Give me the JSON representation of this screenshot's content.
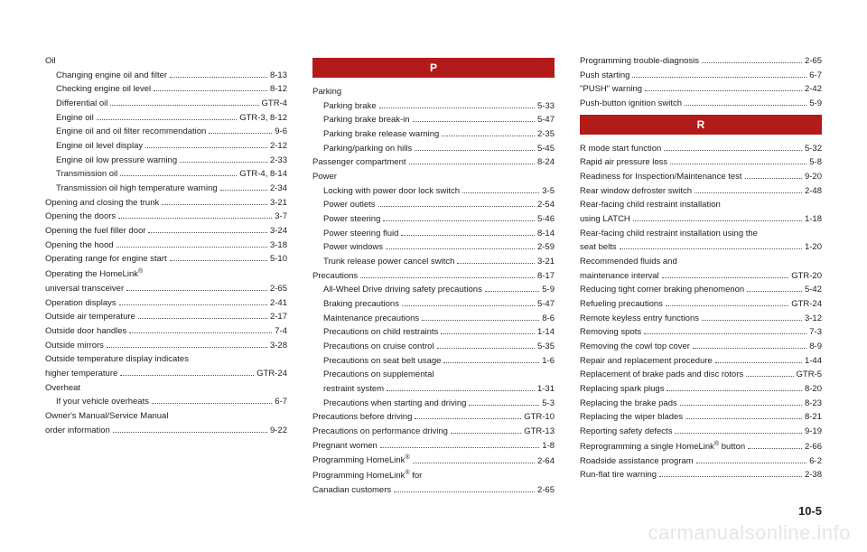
{
  "page_number": "10-5",
  "watermark": "carmanualsonline.info",
  "columns": [
    {
      "items": [
        {
          "type": "group",
          "label": "Oil"
        },
        {
          "type": "entry",
          "indent": true,
          "label": "Changing engine oil and filter",
          "page": "8-13"
        },
        {
          "type": "entry",
          "indent": true,
          "label": "Checking engine oil level",
          "page": "8-12"
        },
        {
          "type": "entry",
          "indent": true,
          "label": "Differential oil",
          "page": "GTR-4"
        },
        {
          "type": "entry",
          "indent": true,
          "label": "Engine oil",
          "page": "GTR-3, 8-12"
        },
        {
          "type": "entry",
          "indent": true,
          "label": "Engine oil and oil filter recommendation",
          "page": "9-6"
        },
        {
          "type": "entry",
          "indent": true,
          "label": "Engine oil level display",
          "page": "2-12"
        },
        {
          "type": "entry",
          "indent": true,
          "label": "Engine oil low pressure warning",
          "page": "2-33"
        },
        {
          "type": "entry",
          "indent": true,
          "label": "Transmission oil",
          "page": "GTR-4, 8-14"
        },
        {
          "type": "entry",
          "indent": true,
          "label": "Transmission oil high temperature warning",
          "page": "2-34"
        },
        {
          "type": "entry",
          "label": "Opening and closing the trunk",
          "page": "3-21"
        },
        {
          "type": "entry",
          "label": "Opening the doors",
          "page": "3-7"
        },
        {
          "type": "entry",
          "label": "Opening the fuel filler door",
          "page": "3-24"
        },
        {
          "type": "entry",
          "label": "Opening the hood",
          "page": "3-18"
        },
        {
          "type": "entry",
          "label": "Operating range for engine start",
          "page": "5-10"
        },
        {
          "type": "group",
          "label": "Operating the HomeLink",
          "sup": "®"
        },
        {
          "type": "entry",
          "label": "universal transceiver",
          "page": "2-65"
        },
        {
          "type": "entry",
          "label": "Operation displays",
          "page": "2-41"
        },
        {
          "type": "entry",
          "label": "Outside air temperature",
          "page": "2-17"
        },
        {
          "type": "entry",
          "label": "Outside door handles",
          "page": "7-4"
        },
        {
          "type": "entry",
          "label": "Outside mirrors",
          "page": "3-28"
        },
        {
          "type": "group",
          "label": "Outside temperature display indicates"
        },
        {
          "type": "entry",
          "label": "higher temperature",
          "page": "GTR-24"
        },
        {
          "type": "group",
          "label": "Overheat"
        },
        {
          "type": "entry",
          "indent": true,
          "label": "If your vehicle overheats",
          "page": "6-7"
        },
        {
          "type": "group",
          "label": "Owner's Manual/Service Manual"
        },
        {
          "type": "entry",
          "label": "order information",
          "page": "9-22"
        }
      ]
    },
    {
      "items": [
        {
          "type": "header",
          "label": "P"
        },
        {
          "type": "group",
          "label": "Parking"
        },
        {
          "type": "entry",
          "indent": true,
          "label": "Parking brake",
          "page": "5-33"
        },
        {
          "type": "entry",
          "indent": true,
          "label": "Parking brake break-in",
          "page": "5-47"
        },
        {
          "type": "entry",
          "indent": true,
          "label": "Parking brake release warning",
          "page": "2-35"
        },
        {
          "type": "entry",
          "indent": true,
          "label": "Parking/parking on hills",
          "page": "5-45"
        },
        {
          "type": "entry",
          "label": "Passenger compartment",
          "page": "8-24"
        },
        {
          "type": "group",
          "label": "Power"
        },
        {
          "type": "entry",
          "indent": true,
          "label": "Locking with power door lock switch",
          "page": "3-5"
        },
        {
          "type": "entry",
          "indent": true,
          "label": "Power outlets",
          "page": "2-54"
        },
        {
          "type": "entry",
          "indent": true,
          "label": "Power steering",
          "page": "5-46"
        },
        {
          "type": "entry",
          "indent": true,
          "label": "Power steering fluid",
          "page": "8-14"
        },
        {
          "type": "entry",
          "indent": true,
          "label": "Power windows",
          "page": "2-59"
        },
        {
          "type": "entry",
          "indent": true,
          "label": "Trunk release power cancel switch",
          "page": "3-21"
        },
        {
          "type": "entry",
          "label": "Precautions",
          "page": "8-17"
        },
        {
          "type": "entry",
          "indent": true,
          "label": "All-Wheel Drive driving safety precautions",
          "page": "5-9"
        },
        {
          "type": "entry",
          "indent": true,
          "label": "Braking precautions",
          "page": "5-47"
        },
        {
          "type": "entry",
          "indent": true,
          "label": "Maintenance precautions",
          "page": "8-6"
        },
        {
          "type": "entry",
          "indent": true,
          "label": "Precautions on child restraints",
          "page": "1-14"
        },
        {
          "type": "entry",
          "indent": true,
          "label": "Precautions on cruise control",
          "page": "5-35"
        },
        {
          "type": "entry",
          "indent": true,
          "label": "Precautions on seat belt usage",
          "page": "1-6"
        },
        {
          "type": "group",
          "indent": true,
          "label": "Precautions on supplemental"
        },
        {
          "type": "entry",
          "indent": true,
          "label": "restraint system",
          "page": "1-31"
        },
        {
          "type": "entry",
          "indent": true,
          "label": "Precautions when starting and driving",
          "page": "5-3"
        },
        {
          "type": "entry",
          "label": "Precautions before driving",
          "page": "GTR-10"
        },
        {
          "type": "entry",
          "label": "Precautions on performance driving",
          "page": "GTR-13"
        },
        {
          "type": "entry",
          "label": "Pregnant women",
          "page": "1-8"
        },
        {
          "type": "entry",
          "label": "Programming HomeLink",
          "sup": "®",
          "page": "2-64"
        },
        {
          "type": "group",
          "label": "Programming HomeLink",
          "sup": "®",
          "suffix": " for"
        },
        {
          "type": "entry",
          "label": "Canadian customers",
          "page": "2-65"
        }
      ]
    },
    {
      "items": [
        {
          "type": "entry",
          "label": "Programming trouble-diagnosis",
          "page": "2-65"
        },
        {
          "type": "entry",
          "label": "Push starting",
          "page": "6-7"
        },
        {
          "type": "entry",
          "label": "\"PUSH\" warning",
          "page": "2-42"
        },
        {
          "type": "entry",
          "label": "Push-button ignition switch",
          "page": "5-9"
        },
        {
          "type": "header",
          "label": "R"
        },
        {
          "type": "entry",
          "label": "R mode start function",
          "page": "5-32"
        },
        {
          "type": "entry",
          "label": "Rapid air pressure loss",
          "page": "5-8"
        },
        {
          "type": "entry",
          "label": "Readiness for Inspection/Maintenance test",
          "page": "9-20"
        },
        {
          "type": "entry",
          "label": "Rear window defroster switch",
          "page": "2-48"
        },
        {
          "type": "group",
          "label": "Rear-facing child restraint installation"
        },
        {
          "type": "entry",
          "label": "using LATCH",
          "page": "1-18"
        },
        {
          "type": "group",
          "label": "Rear-facing child restraint installation using the"
        },
        {
          "type": "entry",
          "label": "seat belts",
          "page": "1-20"
        },
        {
          "type": "group",
          "label": "Recommended fluids and"
        },
        {
          "type": "entry",
          "label": "maintenance interval",
          "page": "GTR-20"
        },
        {
          "type": "entry",
          "label": "Reducing tight corner braking phenomenon",
          "page": "5-42"
        },
        {
          "type": "entry",
          "label": "Refueling precautions",
          "page": "GTR-24"
        },
        {
          "type": "entry",
          "label": "Remote keyless entry functions",
          "page": "3-12"
        },
        {
          "type": "entry",
          "label": "Removing spots",
          "page": "7-3"
        },
        {
          "type": "entry",
          "label": "Removing the cowl top cover",
          "page": "8-9"
        },
        {
          "type": "entry",
          "label": "Repair and replacement procedure",
          "page": "1-44"
        },
        {
          "type": "entry",
          "label": "Replacement of brake pads and disc rotors",
          "page": "GTR-5"
        },
        {
          "type": "entry",
          "label": "Replacing spark plugs",
          "page": "8-20"
        },
        {
          "type": "entry",
          "label": "Replacing the brake pads",
          "page": "8-23"
        },
        {
          "type": "entry",
          "label": "Replacing the wiper blades",
          "page": "8-21"
        },
        {
          "type": "entry",
          "label": "Reporting safety defects",
          "page": "9-19"
        },
        {
          "type": "entry",
          "label": "Reprogramming a single HomeLink",
          "sup": "®",
          "suffix": " button",
          "page": "2-66"
        },
        {
          "type": "entry",
          "label": "Roadside assistance program",
          "page": "6-2"
        },
        {
          "type": "entry",
          "label": "Run-flat tire warning",
          "page": "2-38"
        }
      ]
    }
  ]
}
